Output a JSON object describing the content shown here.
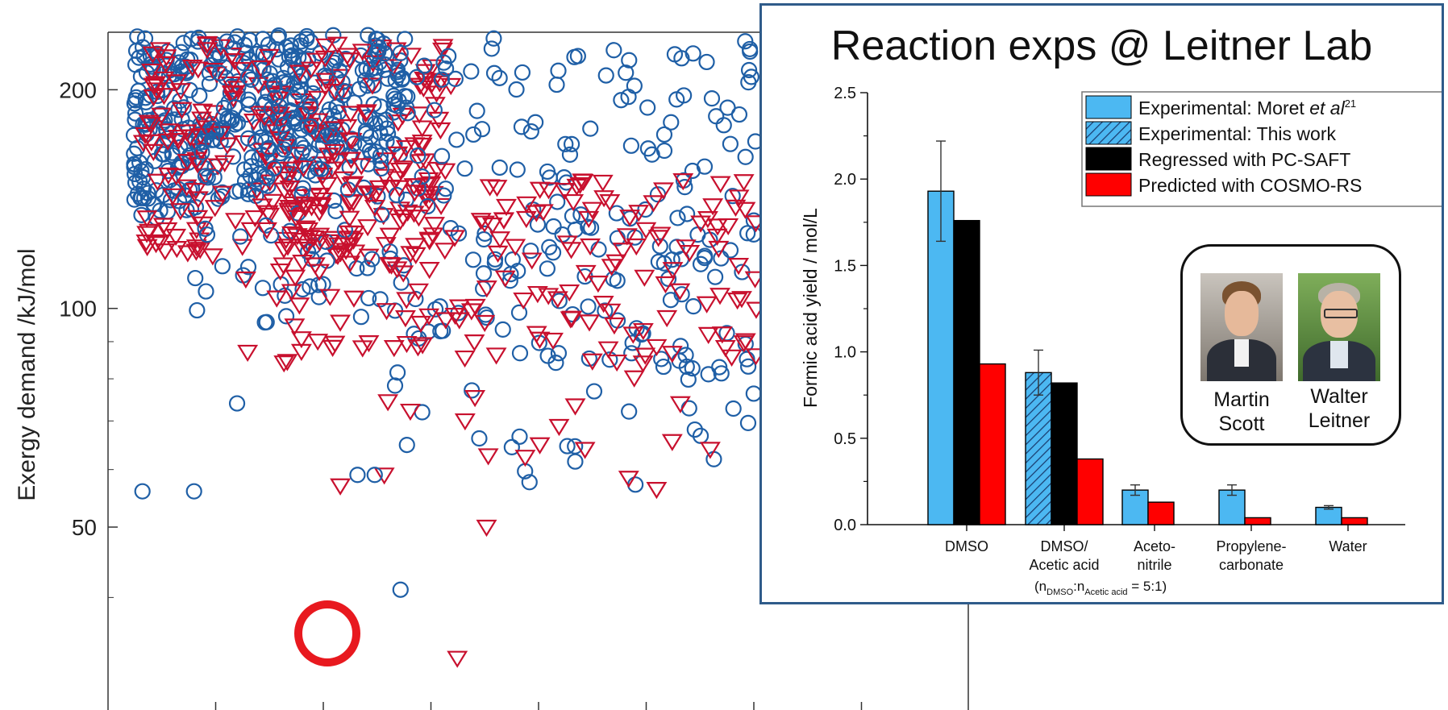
{
  "chart_data": [
    {
      "type": "scatter",
      "ylabel": "Exergy demand /kJ/mol",
      "y_ticks": [
        50,
        100,
        200
      ],
      "y_scale": "log",
      "ylim": [
        28,
        240
      ],
      "x_ticks_labeled": false,
      "grid": false,
      "series": [
        {
          "marker": "circle",
          "color": "#1f5fa6",
          "dense_region_y": [
            120,
            240
          ],
          "outliers": [
            {
              "x": 0.45,
              "y": 41
            },
            {
              "x": 0.52,
              "y": 59
            },
            {
              "x": 1.15,
              "y": 55
            },
            {
              "x": 1.6,
              "y": 62
            },
            {
              "x": 0.65,
              "y": 70
            },
            {
              "x": 1.95,
              "y": 59
            }
          ]
        },
        {
          "marker": "triangle-down",
          "color": "#c8102e",
          "dense_region_y": [
            100,
            240
          ],
          "outliers": [
            {
              "x": 0.55,
              "y": 33
            },
            {
              "x": 1.3,
              "y": 49
            },
            {
              "x": 2.15,
              "y": 63
            },
            {
              "x": 2.95,
              "y": 45
            }
          ]
        }
      ],
      "highlight": {
        "marker": "triangle-down",
        "y": 33,
        "label": "circled minimum"
      }
    },
    {
      "type": "bar",
      "title": "Reaction exps @ Leitner Lab",
      "ylabel": "Formic acid yield / mol/L",
      "ylim": [
        0,
        2.5
      ],
      "y_ticks": [
        "0.0",
        "0.5",
        "1.0",
        "1.5",
        "2.0",
        "2.5"
      ],
      "categories": [
        {
          "line1": "DMSO",
          "line2": ""
        },
        {
          "line1": "DMSO/",
          "line2": "Acetic acid"
        },
        {
          "line1": "Aceto-",
          "line2": "nitrile"
        },
        {
          "line1": "Propylene-",
          "line2": "carbonate"
        },
        {
          "line1": "Water",
          "line2": ""
        }
      ],
      "note": {
        "prefix": "(n",
        "sub1": "DMSO",
        "mid": ":n",
        "sub2": "Acetic acid",
        "suffix": " = 5:1)"
      },
      "series": [
        {
          "name": "Experimental: Moret et al",
          "name_plain": "Experimental: Moret ",
          "name_italic": "et al",
          "ref": "21",
          "color": "#4cb8f2",
          "values": [
            1.93,
            null,
            0.2,
            0.2,
            0.1
          ],
          "errors": [
            0.29,
            null,
            0.03,
            0.03,
            0.01
          ]
        },
        {
          "name": "Experimental: This work",
          "color": "#4cb8f2",
          "hatched": true,
          "values": [
            null,
            0.88,
            null,
            null,
            null
          ],
          "errors": [
            null,
            0.13,
            null,
            null,
            null
          ]
        },
        {
          "name": "Regressed with PC-SAFT",
          "color": "#000000",
          "values": [
            1.76,
            0.82,
            null,
            null,
            null
          ]
        },
        {
          "name": "Predicted with COSMO-RS",
          "color": "#ff0000",
          "values": [
            0.93,
            0.38,
            0.13,
            0.04,
            0.04
          ]
        }
      ],
      "legend_position": "top-right"
    }
  ],
  "people": [
    {
      "first": "Martin",
      "last": "Scott"
    },
    {
      "first": "Walter",
      "last": "Leitner"
    }
  ],
  "colors": {
    "frame": "#2f5b8a",
    "highlight_ring": "#e8191f"
  }
}
